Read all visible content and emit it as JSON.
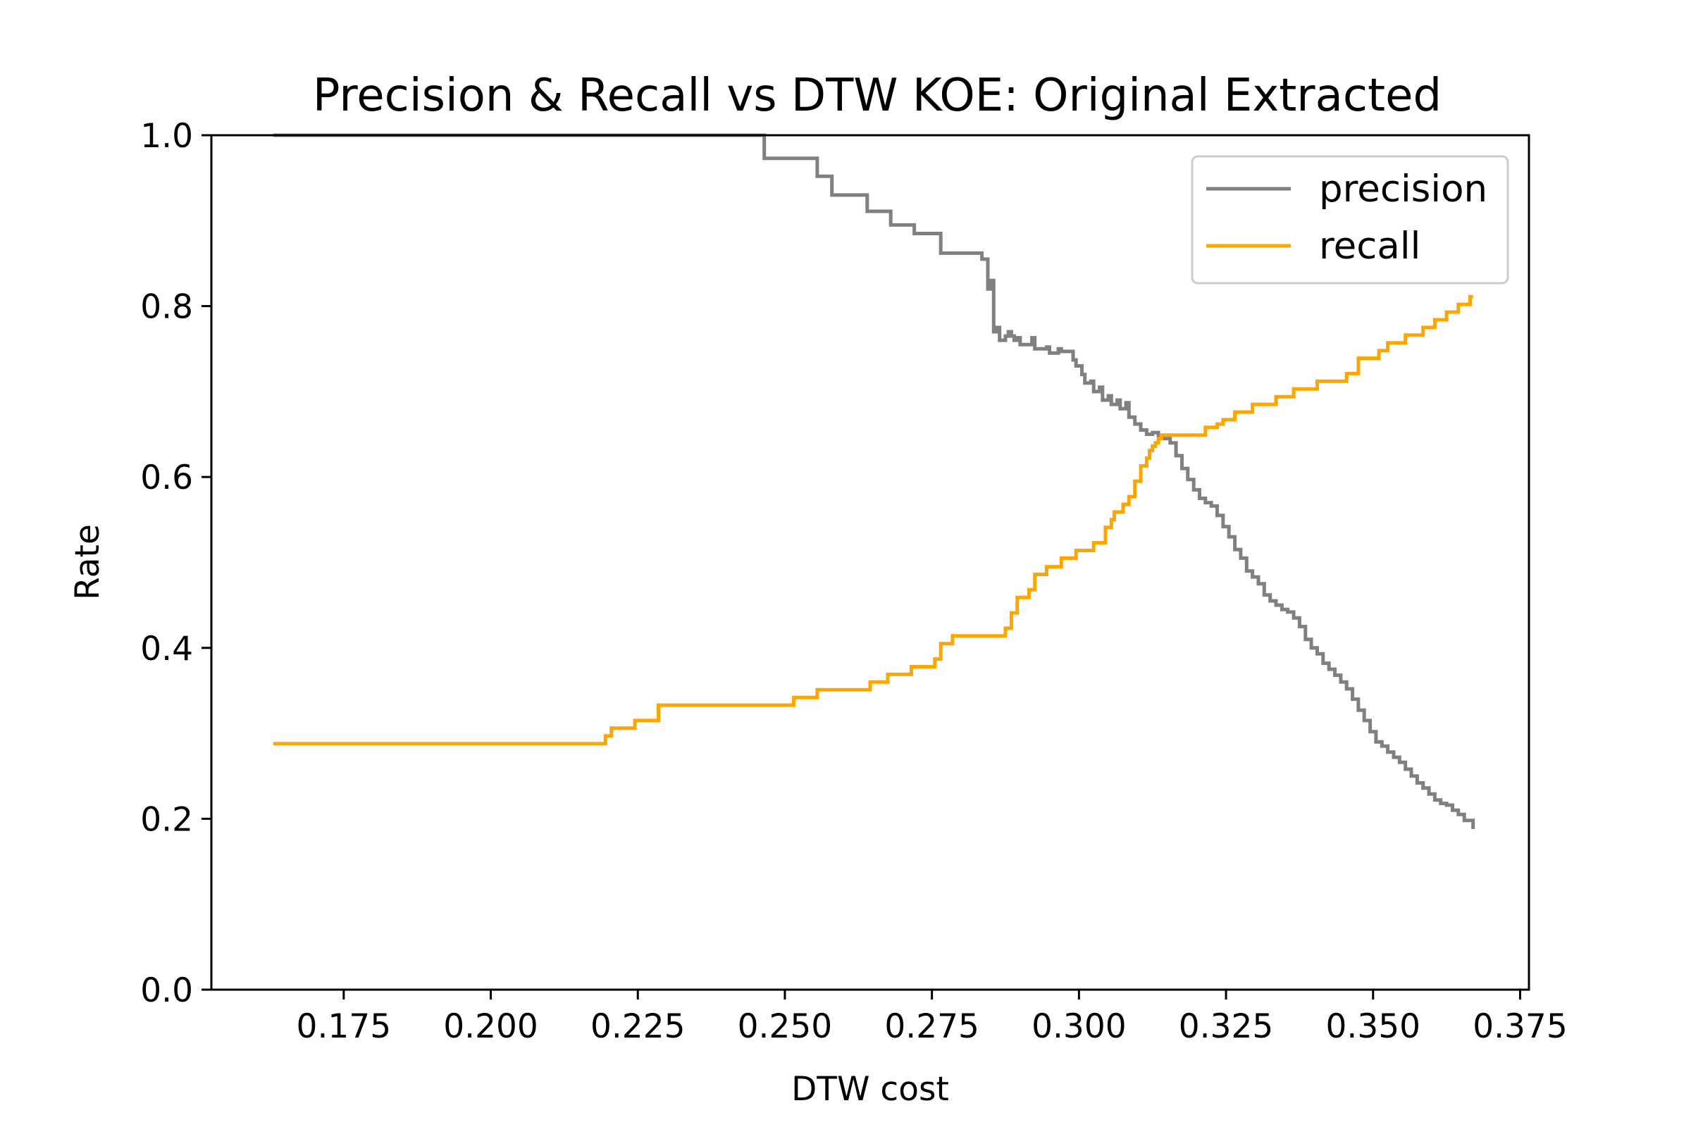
{
  "chart_data": {
    "type": "line",
    "title": "Precision & Recall vs DTW KOE: Original Extracted",
    "xlabel": "DTW cost",
    "ylabel": "Rate",
    "xlim": [
      0.1525,
      0.3765
    ],
    "ylim": [
      0.0,
      1.0
    ],
    "xticks": [
      {
        "value": 0.175,
        "label": "0.175"
      },
      {
        "value": 0.2,
        "label": "0.200"
      },
      {
        "value": 0.225,
        "label": "0.225"
      },
      {
        "value": 0.25,
        "label": "0.250"
      },
      {
        "value": 0.275,
        "label": "0.275"
      },
      {
        "value": 0.3,
        "label": "0.300"
      },
      {
        "value": 0.325,
        "label": "0.325"
      },
      {
        "value": 0.35,
        "label": "0.350"
      },
      {
        "value": 0.375,
        "label": "0.375"
      }
    ],
    "yticks": [
      {
        "value": 0.0,
        "label": "0.0"
      },
      {
        "value": 0.2,
        "label": "0.2"
      },
      {
        "value": 0.4,
        "label": "0.4"
      },
      {
        "value": 0.6,
        "label": "0.6"
      },
      {
        "value": 0.8,
        "label": "0.8"
      },
      {
        "value": 1.0,
        "label": "1.0"
      }
    ],
    "grid": false,
    "legend_position": "top-right",
    "series": [
      {
        "name": "precision",
        "color": "#808080",
        "x": [
          0.163,
          0.246,
          0.2465,
          0.2545,
          0.2555,
          0.2575,
          0.258,
          0.2635,
          0.264,
          0.2675,
          0.268,
          0.2715,
          0.272,
          0.2745,
          0.275,
          0.276,
          0.2765,
          0.2835,
          0.2845,
          0.285,
          0.2855,
          0.286,
          0.2865,
          0.2875,
          0.288,
          0.2885,
          0.289,
          0.2895,
          0.29,
          0.292,
          0.2925,
          0.2945,
          0.295,
          0.2965,
          0.297,
          0.299,
          0.2995,
          0.3005,
          0.301,
          0.302,
          0.3025,
          0.3035,
          0.304,
          0.305,
          0.3055,
          0.3065,
          0.307,
          0.308,
          0.3085,
          0.3095,
          0.3105,
          0.3115,
          0.3125,
          0.3135,
          0.3145,
          0.3155,
          0.3165,
          0.3175,
          0.3185,
          0.3195,
          0.3205,
          0.3215,
          0.3225,
          0.3235,
          0.3245,
          0.3255,
          0.3265,
          0.3275,
          0.3285,
          0.3295,
          0.3305,
          0.3315,
          0.3325,
          0.3335,
          0.3345,
          0.3355,
          0.3365,
          0.3375,
          0.3385,
          0.3395,
          0.3405,
          0.3415,
          0.3425,
          0.3435,
          0.3445,
          0.3455,
          0.3465,
          0.3475,
          0.3485,
          0.3495,
          0.3505,
          0.3515,
          0.3525,
          0.3535,
          0.3545,
          0.3555,
          0.3565,
          0.3575,
          0.3585,
          0.3595,
          0.3605,
          0.3615,
          0.3625,
          0.3635,
          0.3645,
          0.3655,
          0.367
        ],
        "y": [
          1.0,
          1.0,
          0.973,
          0.973,
          0.952,
          0.952,
          0.93,
          0.93,
          0.911,
          0.911,
          0.895,
          0.895,
          0.885,
          0.885,
          0.885,
          0.885,
          0.862,
          0.855,
          0.82,
          0.83,
          0.77,
          0.775,
          0.76,
          0.765,
          0.77,
          0.765,
          0.76,
          0.763,
          0.755,
          0.763,
          0.75,
          0.752,
          0.745,
          0.75,
          0.747,
          0.737,
          0.73,
          0.72,
          0.71,
          0.712,
          0.7,
          0.705,
          0.69,
          0.695,
          0.685,
          0.69,
          0.68,
          0.687,
          0.67,
          0.662,
          0.655,
          0.65,
          0.652,
          0.648,
          0.645,
          0.64,
          0.625,
          0.61,
          0.597,
          0.585,
          0.575,
          0.57,
          0.566,
          0.555,
          0.542,
          0.53,
          0.515,
          0.505,
          0.49,
          0.483,
          0.475,
          0.462,
          0.455,
          0.45,
          0.445,
          0.442,
          0.435,
          0.425,
          0.41,
          0.4,
          0.393,
          0.382,
          0.375,
          0.368,
          0.36,
          0.352,
          0.34,
          0.327,
          0.315,
          0.302,
          0.29,
          0.285,
          0.278,
          0.272,
          0.266,
          0.258,
          0.25,
          0.242,
          0.236,
          0.229,
          0.222,
          0.218,
          0.216,
          0.21,
          0.205,
          0.198,
          0.188
        ]
      },
      {
        "name": "recall",
        "color": "#ffa500",
        "x": [
          0.163,
          0.21,
          0.2195,
          0.2205,
          0.2245,
          0.2285,
          0.2515,
          0.2555,
          0.2645,
          0.2675,
          0.2715,
          0.2755,
          0.2765,
          0.2785,
          0.2875,
          0.2885,
          0.2895,
          0.2915,
          0.2925,
          0.2945,
          0.297,
          0.2995,
          0.3025,
          0.3045,
          0.3055,
          0.306,
          0.3075,
          0.3085,
          0.3095,
          0.3105,
          0.3115,
          0.312,
          0.3125,
          0.313,
          0.3135,
          0.314,
          0.32,
          0.3215,
          0.3235,
          0.3245,
          0.3265,
          0.3295,
          0.3335,
          0.3365,
          0.3405,
          0.3455,
          0.3475,
          0.351,
          0.3525,
          0.3535,
          0.3555,
          0.3585,
          0.3605,
          0.3625,
          0.3645,
          0.3665,
          0.367
        ],
        "y": [
          0.288,
          0.288,
          0.297,
          0.306,
          0.315,
          0.333,
          0.342,
          0.351,
          0.36,
          0.369,
          0.378,
          0.387,
          0.405,
          0.414,
          0.423,
          0.441,
          0.459,
          0.468,
          0.486,
          0.495,
          0.505,
          0.514,
          0.523,
          0.541,
          0.55,
          0.559,
          0.568,
          0.577,
          0.595,
          0.613,
          0.622,
          0.631,
          0.636,
          0.64,
          0.645,
          0.649,
          0.649,
          0.658,
          0.662,
          0.667,
          0.676,
          0.685,
          0.694,
          0.703,
          0.712,
          0.721,
          0.739,
          0.748,
          0.757,
          0.757,
          0.766,
          0.775,
          0.784,
          0.793,
          0.802,
          0.811,
          0.811
        ]
      }
    ]
  }
}
